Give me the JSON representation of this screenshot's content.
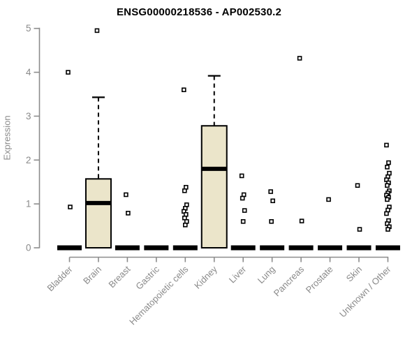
{
  "chart_data": {
    "type": "boxplot",
    "title": "ENSG00000218536 - AP002530.2",
    "xlabel": "",
    "ylabel": "Expression",
    "ylim": [
      0,
      5
    ],
    "yticks": [
      0,
      1,
      2,
      3,
      4,
      5
    ],
    "legend": false,
    "grid": false,
    "categories": [
      "Bladder",
      "Brain",
      "Breast",
      "Gastric",
      "Hematopoietic cells",
      "Kidney",
      "Liver",
      "Lung",
      "Pancreas",
      "Prostate",
      "Skin",
      "Unknown / Other"
    ],
    "boxes": [
      {
        "category": "Bladder",
        "q1": 0,
        "median": 0,
        "q3": 0,
        "whisker_low": 0,
        "whisker_high": 0,
        "outliers": [
          4.0,
          0.93
        ]
      },
      {
        "category": "Brain",
        "q1": 0,
        "median": 1.02,
        "q3": 1.57,
        "whisker_low": 0,
        "whisker_high": 3.43,
        "outliers": [
          4.95
        ]
      },
      {
        "category": "Breast",
        "q1": 0,
        "median": 0,
        "q3": 0,
        "whisker_low": 0,
        "whisker_high": 0,
        "outliers": [
          1.21,
          0.79
        ]
      },
      {
        "category": "Gastric",
        "q1": 0,
        "median": 0,
        "q3": 0,
        "whisker_low": 0,
        "whisker_high": 0,
        "outliers": []
      },
      {
        "category": "Hematopoietic cells",
        "q1": 0,
        "median": 0,
        "q3": 0,
        "whisker_low": 0,
        "whisker_high": 0,
        "outliers": [
          3.6,
          1.38,
          1.3,
          0.98,
          0.9,
          0.83,
          0.76,
          0.68,
          0.6,
          0.52
        ]
      },
      {
        "category": "Kidney",
        "q1": 0,
        "median": 1.8,
        "q3": 2.78,
        "whisker_low": 0,
        "whisker_high": 3.92,
        "outliers": []
      },
      {
        "category": "Liver",
        "q1": 0,
        "median": 0,
        "q3": 0,
        "whisker_low": 0,
        "whisker_high": 0,
        "outliers": [
          1.64,
          1.21,
          1.13,
          0.85,
          0.6
        ]
      },
      {
        "category": "Lung",
        "q1": 0,
        "median": 0,
        "q3": 0,
        "whisker_low": 0,
        "whisker_high": 0,
        "outliers": [
          1.28,
          1.07,
          0.6
        ]
      },
      {
        "category": "Pancreas",
        "q1": 0,
        "median": 0,
        "q3": 0,
        "whisker_low": 0,
        "whisker_high": 0,
        "outliers": [
          4.32,
          0.61
        ]
      },
      {
        "category": "Prostate",
        "q1": 0,
        "median": 0,
        "q3": 0,
        "whisker_low": 0,
        "whisker_high": 0,
        "outliers": [
          1.1
        ]
      },
      {
        "category": "Skin",
        "q1": 0,
        "median": 0,
        "q3": 0,
        "whisker_low": 0,
        "whisker_high": 0,
        "outliers": [
          1.42,
          0.42
        ]
      },
      {
        "category": "Unknown / Other",
        "q1": 0,
        "median": 0,
        "q3": 0,
        "whisker_low": 0,
        "whisker_high": 0,
        "outliers": [
          2.34,
          1.94,
          1.84,
          1.7,
          1.62,
          1.55,
          1.48,
          1.42,
          1.3,
          1.25,
          1.2,
          1.15,
          1.1,
          0.93,
          0.86,
          0.78,
          0.62,
          0.55,
          0.48,
          0.42
        ]
      }
    ],
    "colors": {
      "box_fill": "#EBE5CA",
      "box_stroke": "#000000",
      "median": "#000000",
      "whisker": "#000000",
      "outlier_stroke": "#000000",
      "outlier_fill": "#ffffff",
      "axis": "#8c8c8c",
      "tick_label": "#8a8a8a",
      "title": "#000000",
      "background": "#ffffff"
    }
  }
}
